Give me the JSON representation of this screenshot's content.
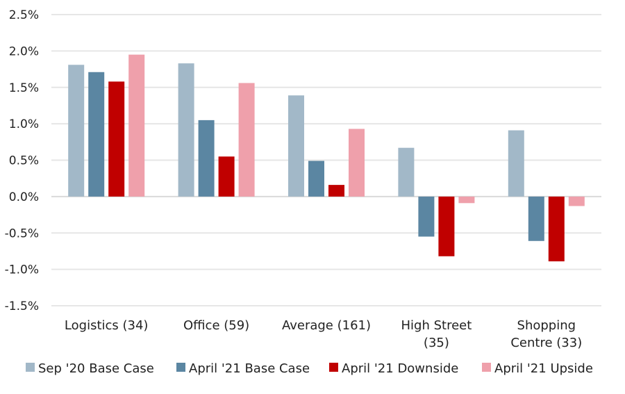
{
  "chart_data": {
    "type": "bar",
    "title": "",
    "xlabel": "",
    "ylabel": "",
    "categories": [
      [
        "Logistics (34)"
      ],
      [
        "Office (59)"
      ],
      [
        "Average (161)"
      ],
      [
        "High Street",
        "(35)"
      ],
      [
        "Shopping",
        "Centre (33)"
      ]
    ],
    "series": [
      {
        "name": "Sep '20 Base Case",
        "color": "#a2b8c8",
        "values": [
          1.81,
          1.83,
          1.39,
          0.67,
          0.91
        ]
      },
      {
        "name": "April '21 Base Case",
        "color": "#5b86a2",
        "values": [
          1.71,
          1.05,
          0.49,
          -0.55,
          -0.61
        ]
      },
      {
        "name": "April '21 Downside",
        "color": "#c00000",
        "values": [
          1.58,
          0.55,
          0.16,
          -0.82,
          -0.89
        ]
      },
      {
        "name": "April '21 Upside",
        "color": "#efa0ab",
        "values": [
          1.95,
          1.56,
          0.93,
          -0.09,
          -0.13
        ]
      }
    ],
    "ylim": [
      -1.5,
      2.5
    ],
    "yticks": [
      2.5,
      2.0,
      1.5,
      1.0,
      0.5,
      0.0,
      -0.5,
      -1.0,
      -1.5
    ],
    "ytick_labels": [
      "2.5%",
      "2.0%",
      "1.5%",
      "1.0%",
      "0.5%",
      "0.0%",
      "-0.5%",
      "-1.0%",
      "-1.5%"
    ],
    "grid": true,
    "legend_position": "bottom"
  }
}
